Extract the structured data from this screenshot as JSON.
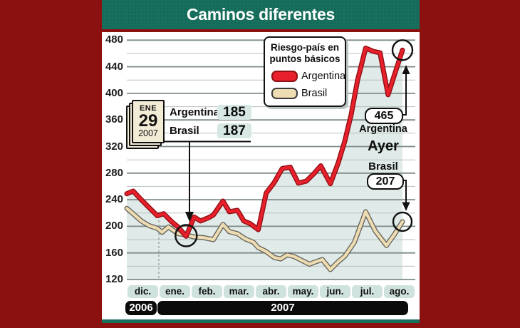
{
  "colors": {
    "frame_maroon": "#8b1110",
    "header_teal": "#17705e",
    "area_fill": "#e0ebe9",
    "grid_major": "#7e8c89",
    "grid_minor": "#b7c1be",
    "argentina_red": "#e8202b",
    "argentina_outline": "#8f1015",
    "brasil_tan": "#eedcb2",
    "brasil_outline": "#6a675f",
    "ink": "#0d0d0d"
  },
  "header": {
    "title": "Caminos diferentes"
  },
  "legend": {
    "title_line1": "Riesgo-país en",
    "title_line2": "puntos básicos",
    "items": [
      {
        "label": "Argentina",
        "color": "#e8202b",
        "outline": "#8f1015"
      },
      {
        "label": "Brasil",
        "color": "#eedcb2",
        "outline": "#3a3a3a"
      }
    ]
  },
  "callout_jan29": {
    "calendar": {
      "month": "ENE",
      "day": "29",
      "year": "2007"
    },
    "rows": [
      {
        "label": "Argentina",
        "value": "185"
      },
      {
        "label": "Brasil",
        "value": "187"
      }
    ]
  },
  "ayer_callout": {
    "argentina_value": "465",
    "argentina_label": "Argentina",
    "title": "Ayer",
    "brasil_label": "Brasil",
    "brasil_value": "207"
  },
  "x_axis": {
    "months": [
      "dic.",
      "ene.",
      "feb.",
      "mar.",
      "abr.",
      "may.",
      "jun.",
      "jul.",
      "ago."
    ],
    "years": [
      {
        "label": "2006",
        "from": 0,
        "to": 1
      },
      {
        "label": "2007",
        "from": 1,
        "to": 8.85
      }
    ]
  },
  "y_axis": {
    "min": 120,
    "max": 480,
    "major_step": 40,
    "minor_step": 20,
    "ticks": [
      480,
      440,
      400,
      360,
      320,
      280,
      240,
      200,
      160,
      120
    ]
  },
  "chart_data": {
    "type": "line",
    "title": "Caminos diferentes",
    "subtitle": "Riesgo-país en puntos básicos",
    "x_description": "position in months, 0 = inicio dic. 2006, 8.6 = ayer (ago. 2007)",
    "ylim": [
      120,
      480
    ],
    "grid": "horizontal major every 40, minor every 20",
    "legend_position": "top-center",
    "series": [
      {
        "name": "Argentina",
        "color": "#e8202b",
        "points": [
          [
            0,
            249
          ],
          [
            0.2,
            253
          ],
          [
            0.45,
            240
          ],
          [
            0.7,
            228
          ],
          [
            0.95,
            216
          ],
          [
            1.15,
            219
          ],
          [
            1.4,
            207
          ],
          [
            1.6,
            199
          ],
          [
            1.85,
            185
          ],
          [
            2.1,
            214
          ],
          [
            2.3,
            208
          ],
          [
            2.55,
            213
          ],
          [
            2.7,
            217
          ],
          [
            3.0,
            238
          ],
          [
            3.2,
            222
          ],
          [
            3.45,
            224
          ],
          [
            3.65,
            208
          ],
          [
            3.85,
            204
          ],
          [
            4.1,
            195
          ],
          [
            4.35,
            250
          ],
          [
            4.6,
            266
          ],
          [
            4.85,
            287
          ],
          [
            5.1,
            289
          ],
          [
            5.35,
            265
          ],
          [
            5.6,
            268
          ],
          [
            5.85,
            280
          ],
          [
            6.05,
            291
          ],
          [
            6.35,
            264
          ],
          [
            6.6,
            296
          ],
          [
            6.8,
            328
          ],
          [
            7.0,
            368
          ],
          [
            7.2,
            420
          ],
          [
            7.45,
            468
          ],
          [
            7.7,
            463
          ],
          [
            7.9,
            461
          ],
          [
            8.15,
            398
          ],
          [
            8.35,
            428
          ],
          [
            8.6,
            465
          ]
        ]
      },
      {
        "name": "Brasil",
        "color": "#eedcb2",
        "points": [
          [
            0,
            227
          ],
          [
            0.22,
            218
          ],
          [
            0.45,
            208
          ],
          [
            0.7,
            201
          ],
          [
            0.95,
            197
          ],
          [
            1.1,
            191
          ],
          [
            1.3,
            199
          ],
          [
            1.6,
            189
          ],
          [
            1.85,
            187
          ],
          [
            2.1,
            184
          ],
          [
            2.4,
            183
          ],
          [
            2.7,
            180
          ],
          [
            3.0,
            203
          ],
          [
            3.2,
            192
          ],
          [
            3.45,
            189
          ],
          [
            3.7,
            181
          ],
          [
            3.95,
            176
          ],
          [
            4.1,
            168
          ],
          [
            4.35,
            162
          ],
          [
            4.6,
            153
          ],
          [
            4.8,
            151
          ],
          [
            5.0,
            157
          ],
          [
            5.2,
            155
          ],
          [
            5.45,
            149
          ],
          [
            5.7,
            143
          ],
          [
            5.85,
            146
          ],
          [
            6.1,
            150
          ],
          [
            6.35,
            135
          ],
          [
            6.6,
            147
          ],
          [
            6.8,
            155
          ],
          [
            7.1,
            176
          ],
          [
            7.45,
            222
          ],
          [
            7.75,
            193
          ],
          [
            8.1,
            171
          ],
          [
            8.35,
            188
          ],
          [
            8.6,
            207
          ]
        ]
      }
    ],
    "markers": [
      {
        "name": "ene-29-2007",
        "pos": 1.85,
        "value": 186,
        "r": 15
      },
      {
        "name": "ayer-argentina",
        "pos": 8.6,
        "value": 465,
        "r": 14
      },
      {
        "name": "ayer-brasil",
        "pos": 8.6,
        "value": 207,
        "r": 13
      }
    ],
    "annotations": [
      {
        "date": "ENE 29 2007",
        "Argentina": 185,
        "Brasil": 187
      },
      {
        "date": "Ayer",
        "Argentina": 465,
        "Brasil": 207
      }
    ]
  }
}
